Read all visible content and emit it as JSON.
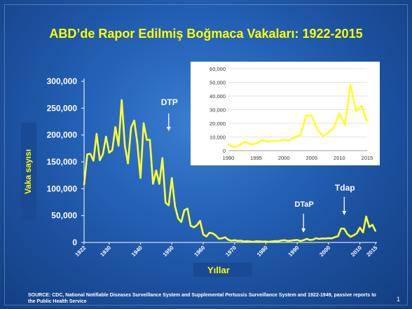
{
  "slide_number": "1",
  "source_note": "SOURCE:  CDC, National Notifiable Diseases  Surveillance System and Supplemental Pertussis  Surveillance System and 1922-1949,  passive  reports to the Public Health Service",
  "colors": {
    "accent": "#ffff00",
    "line": "#ffff33",
    "background": "#2563b8",
    "inset_bg": "#ffffff",
    "inset_line": "#ffff00"
  },
  "chart_data": [
    {
      "type": "line",
      "title": "ABD’de Rapor Edilmiş Boğmaca Vakaları: 1922-2015",
      "xlabel": "Yıllar",
      "ylabel": "Vaka sayısı",
      "ylim": [
        0,
        300000
      ],
      "xlim": [
        1922,
        2015
      ],
      "yticks": [
        "0",
        "50,000",
        "100,000",
        "150,000",
        "200,000",
        "250,000",
        "300,000"
      ],
      "xticks": [
        "1922",
        "1930",
        "1940",
        "1950",
        "1960",
        "1970",
        "1980",
        "1990",
        "2000",
        "2010",
        "2015"
      ],
      "grid": false,
      "annotations": [
        {
          "label": "DTP",
          "year": 1949
        },
        {
          "label": "DTaP",
          "year": 1992
        },
        {
          "label": "Tdap",
          "year": 2005
        }
      ],
      "series": [
        {
          "x": [
            1922,
            1923,
            1924,
            1925,
            1926,
            1927,
            1928,
            1929,
            1930,
            1931,
            1932,
            1933,
            1934,
            1935,
            1936,
            1937,
            1938,
            1939,
            1940,
            1941,
            1942,
            1943,
            1944,
            1945,
            1946,
            1947,
            1948,
            1949,
            1950,
            1951,
            1952,
            1953,
            1954,
            1955,
            1956,
            1957,
            1958,
            1959,
            1960,
            1961,
            1962,
            1963,
            1964,
            1965,
            1966,
            1967,
            1968,
            1969,
            1970,
            1971,
            1972,
            1973,
            1974,
            1975,
            1976,
            1977,
            1978,
            1979,
            1980,
            1981,
            1982,
            1983,
            1984,
            1985,
            1986,
            1987,
            1988,
            1989,
            1990,
            1991,
            1992,
            1993,
            1994,
            1995,
            1996,
            1997,
            1998,
            1999,
            2000,
            2001,
            2002,
            2003,
            2004,
            2005,
            2006,
            2007,
            2008,
            2009,
            2010,
            2011,
            2012,
            2013,
            2014,
            2015
          ],
          "y": [
            107000,
            164000,
            165000,
            152000,
            202000,
            153000,
            164000,
            197000,
            167000,
            172000,
            215000,
            180000,
            265000,
            180000,
            147000,
            214000,
            227000,
            185000,
            120000,
            222000,
            191000,
            191000,
            109000,
            134000,
            109000,
            157000,
            74000,
            69000,
            120000,
            68000,
            45000,
            38000,
            60000,
            63000,
            31000,
            28000,
            32000,
            40000,
            15000,
            11000,
            18000,
            17000,
            13000,
            7000,
            7700,
            9700,
            4800,
            3300,
            4200,
            3000,
            3300,
            1800,
            2400,
            1700,
            1000,
            2200,
            2000,
            1600,
            1700,
            1300,
            1900,
            2500,
            2300,
            3600,
            4200,
            2800,
            3450,
            4150,
            4570,
            2700,
            4100,
            6600,
            4600,
            5100,
            7800,
            6500,
            7400,
            7300,
            7900,
            7600,
            9800,
            11600,
            25800,
            25600,
            15600,
            10500,
            13300,
            16900,
            27500,
            18700,
            48300,
            28600,
            32900,
            21000
          ]
        }
      ]
    },
    {
      "type": "line",
      "title": "",
      "ylim": [
        0,
        60000
      ],
      "xlim": [
        1990,
        2015
      ],
      "yticks": [
        "0",
        "10,000",
        "20,000",
        "30,000",
        "40,000",
        "50,000",
        "60,000"
      ],
      "xticks": [
        "1990",
        "1995",
        "2000",
        "2005",
        "2010",
        "2015"
      ],
      "grid": true,
      "series": [
        {
          "x": [
            1990,
            1991,
            1992,
            1993,
            1994,
            1995,
            1996,
            1997,
            1998,
            1999,
            2000,
            2001,
            2002,
            2003,
            2004,
            2005,
            2006,
            2007,
            2008,
            2009,
            2010,
            2011,
            2012,
            2013,
            2014,
            2015
          ],
          "y": [
            4570,
            2700,
            4100,
            6600,
            4600,
            5100,
            7800,
            6500,
            7400,
            7300,
            7900,
            7600,
            9800,
            11600,
            25800,
            25600,
            15600,
            10500,
            13300,
            16900,
            27500,
            18700,
            48300,
            28600,
            32900,
            21000
          ]
        }
      ]
    }
  ]
}
